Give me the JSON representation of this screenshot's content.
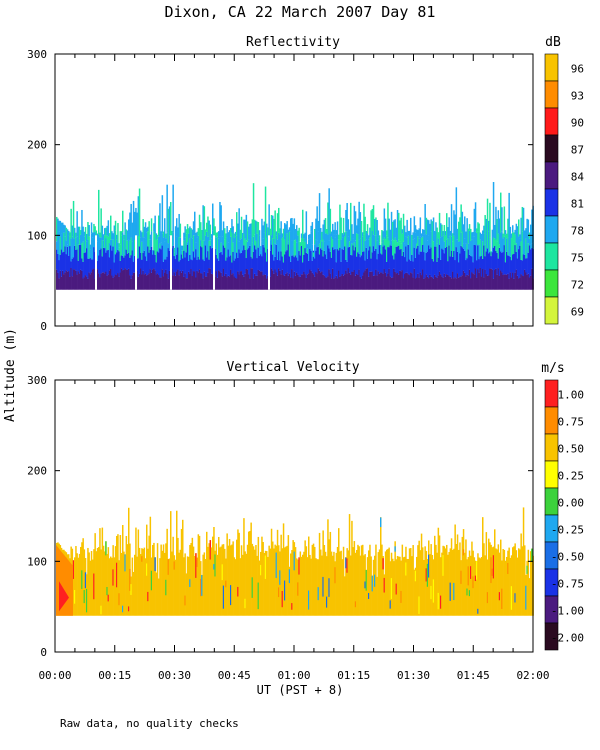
{
  "figure": {
    "title": "Dixon, CA 22 March 2007  Day  81",
    "ylabel": "Altitude (m)",
    "xlabel": "UT  (PST + 8)",
    "footnote": "Raw data, no quality checks"
  },
  "chart_data": [
    {
      "type": "heatmap",
      "title": "Reflectivity",
      "ylabel": "Altitude (m)",
      "xlabel": "UT  (PST + 8)",
      "ylim": [
        0,
        300
      ],
      "yticks": [
        0,
        100,
        200,
        300
      ],
      "xlim_minutes": [
        0,
        120
      ],
      "xticks": [
        "00:00",
        "00:15",
        "00:30",
        "00:45",
        "01:00",
        "01:15",
        "01:30",
        "01:45",
        "02:00"
      ],
      "data_altitude_range_m": [
        40,
        160
      ],
      "colorbar": {
        "unit": "dB",
        "levels": [
          "96",
          "93",
          "90",
          "87",
          "84",
          "81",
          "78",
          "75",
          "72",
          "69"
        ],
        "colors": [
          "#f8c300",
          "#ff8c00",
          "#ff1a1a",
          "#2a0a20",
          "#4b1a7f",
          "#1a32e6",
          "#1fa8f0",
          "#1ee6a0",
          "#3ce63c",
          "#d4f53c"
        ]
      }
    },
    {
      "type": "heatmap",
      "title": "Vertical Velocity",
      "ylabel": "Altitude (m)",
      "xlabel": "UT  (PST + 8)",
      "ylim": [
        0,
        300
      ],
      "yticks": [
        0,
        100,
        200,
        300
      ],
      "xlim_minutes": [
        0,
        120
      ],
      "xticks": [
        "00:00",
        "00:15",
        "00:30",
        "00:45",
        "01:00",
        "01:15",
        "01:30",
        "01:45",
        "02:00"
      ],
      "data_altitude_range_m": [
        40,
        160
      ],
      "colorbar": {
        "unit": "m/s",
        "levels": [
          "1.00",
          "0.75",
          "0.50",
          "0.25",
          "0.00",
          "-0.25",
          "-0.50",
          "-0.75",
          "-1.00",
          "-2.00"
        ],
        "colors": [
          "#ff2020",
          "#ff8c00",
          "#f8c300",
          "#ffff00",
          "#3cd23c",
          "#1fa8f0",
          "#1a6ee6",
          "#1a32e6",
          "#4b1a7f",
          "#2a0a20"
        ]
      }
    }
  ]
}
